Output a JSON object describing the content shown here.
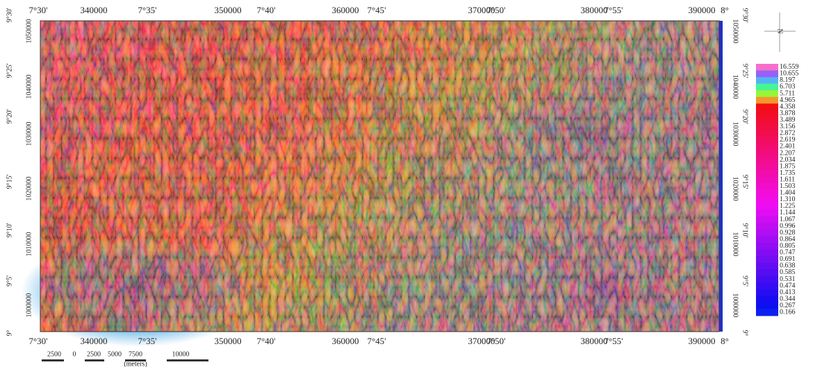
{
  "top_labels": [
    "7°30'",
    "340000",
    "7°35'",
    "350000",
    "7°40'",
    "360000",
    "7°45'",
    "370000",
    "7°50'",
    "380000",
    "7°55'",
    "390000",
    "8°"
  ],
  "bottom_labels": [
    "7°30'",
    "340000",
    "7°35'",
    "350000",
    "7°40'",
    "360000",
    "7°45'",
    "370000",
    "7°50'",
    "380000",
    "7°55'",
    "390000",
    "8°"
  ],
  "left_labels": [
    "9°30'",
    "1050000",
    "9°25'",
    "1040000",
    "9°20'",
    "1030000",
    "9°15'",
    "1020000",
    "9°10'",
    "1010000",
    "9°5'",
    "1000000",
    "9°"
  ],
  "right_labels": [
    "9°30'",
    "1050000",
    "9°25'",
    "1040000",
    "9°20'",
    "1030000",
    "9°15'",
    "1020000",
    "9°10'",
    "1010000",
    "9°5'",
    "1000000",
    "9°"
  ],
  "legend": {
    "values": [
      "16.559",
      "10.655",
      "8.197",
      "6.703",
      "5.711",
      "4.965",
      "4.358",
      "3.878",
      "3.489",
      "3.156",
      "2.872",
      "2.619",
      "2.401",
      "2.207",
      "2.034",
      "1.875",
      "1.735",
      "1.611",
      "1.503",
      "1.404",
      "1.310",
      "1.225",
      "1.144",
      "1.067",
      "0.996",
      "0.928",
      "0.864",
      "0.805",
      "0.747",
      "0.691",
      "0.638",
      "0.585",
      "0.531",
      "0.474",
      "0.413",
      "0.344",
      "0.267",
      "0.166"
    ]
  },
  "scale_bar": {
    "ticks": [
      "2500",
      "0",
      "2500",
      "5000",
      "7500",
      "10000"
    ],
    "unit": "(meters)"
  },
  "north": "N"
}
